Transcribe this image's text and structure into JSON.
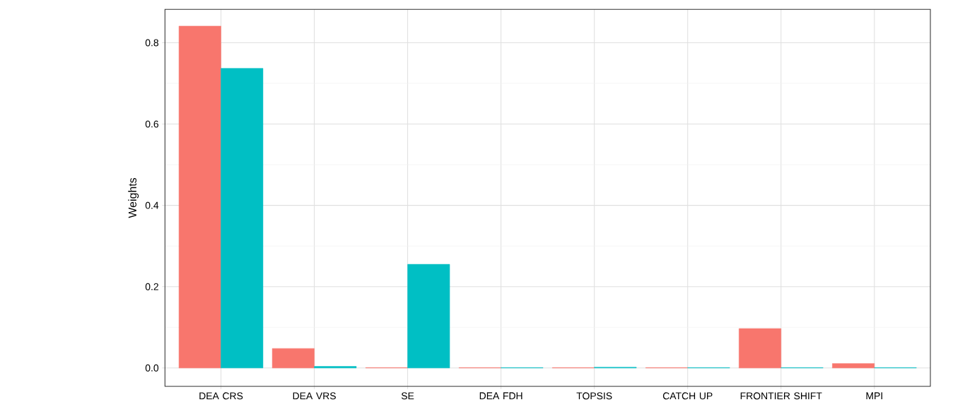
{
  "chart_data": {
    "type": "bar",
    "ylabel": "Weights",
    "categories": [
      "DEA CRS",
      "DEA VRS",
      "SE",
      "DEA FDH",
      "TOPSIS",
      "CATCH UP",
      "FRONTIER SHIFT",
      "MPI"
    ],
    "series": [
      {
        "color": "#f8766d",
        "values": [
          0.841,
          0.048,
          0.001,
          0.001,
          0.001,
          0.001,
          0.097,
          0.011
        ]
      },
      {
        "color": "#00bfc4",
        "values": [
          0.737,
          0.004,
          0.255,
          0.001,
          0.002,
          0.001,
          0.001,
          0.001
        ]
      }
    ],
    "ylim": [
      -0.045,
      0.882
    ],
    "yticks": [
      {
        "value": 0,
        "label": "0.0"
      },
      0.2,
      0.4,
      0.6,
      0.8
    ],
    "grid": true
  }
}
